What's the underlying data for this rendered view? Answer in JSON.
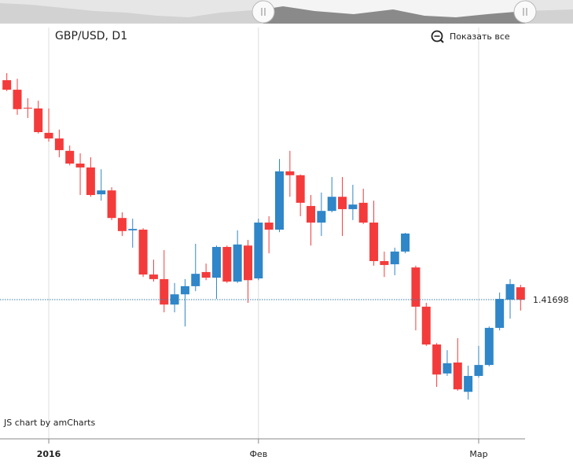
{
  "chart_data": {
    "type": "candlestick",
    "title": "GBP/USD, D1",
    "zoom_button": "Показать все",
    "credit": "JS chart by amCharts",
    "categories": [
      null,
      null,
      null,
      null,
      "2016",
      null,
      null,
      null,
      null,
      null,
      null,
      null,
      null,
      null,
      null,
      null,
      null,
      null,
      null,
      null,
      null,
      null,
      null,
      null,
      "Фев",
      null,
      null,
      null,
      null,
      null,
      null,
      null,
      null,
      null,
      null,
      null,
      null,
      null,
      null,
      null,
      null,
      null,
      null,
      null,
      null,
      "Мар",
      null,
      null,
      null,
      null
    ],
    "open": [
      1.4791,
      1.4764,
      1.4713,
      1.4711,
      1.4642,
      1.4626,
      1.4591,
      1.4555,
      1.4544,
      1.4468,
      1.4479,
      1.4401,
      1.4366,
      1.4368,
      1.4241,
      1.4228,
      1.4156,
      1.4185,
      1.4208,
      1.4248,
      1.4232,
      1.4319,
      1.4221,
      1.4323,
      1.423,
      1.4388,
      1.4368,
      1.4533,
      1.4522,
      1.4435,
      1.4388,
      1.4421,
      1.4461,
      1.4426,
      1.4444,
      1.4388,
      1.4279,
      1.427,
      1.4306,
      1.4261,
      1.415,
      1.4043,
      1.3961,
      1.3992,
      1.3909,
      1.3954,
      1.3985,
      1.409,
      1.41698,
      1.4205
    ],
    "high": [
      1.4811,
      1.4795,
      1.474,
      1.4733,
      1.4711,
      1.4651,
      1.4606,
      1.4584,
      1.4573,
      1.4539,
      1.4488,
      1.4417,
      1.4399,
      1.4372,
      1.4283,
      1.431,
      1.4217,
      1.4228,
      1.4328,
      1.4272,
      1.4323,
      1.4323,
      1.4366,
      1.4339,
      1.4399,
      1.4406,
      1.4568,
      1.4591,
      1.4524,
      1.4466,
      1.4473,
      1.4517,
      1.4517,
      1.4495,
      1.4484,
      1.445,
      1.4306,
      1.4317,
      1.4359,
      1.4266,
      1.4161,
      1.4047,
      1.4027,
      1.4061,
      1.3983,
      1.4039,
      1.4094,
      1.419,
      1.4228,
      1.4212
    ],
    "low": [
      1.476,
      1.4693,
      1.4684,
      1.464,
      1.4617,
      1.4573,
      1.455,
      1.4466,
      1.4461,
      1.445,
      1.4395,
      1.435,
      1.4317,
      1.4234,
      1.4221,
      1.4134,
      1.4134,
      1.4094,
      1.4194,
      1.4225,
      1.4172,
      1.4217,
      1.4217,
      1.4161,
      1.4225,
      1.4301,
      1.4361,
      1.4461,
      1.4406,
      1.4323,
      1.435,
      1.4417,
      1.435,
      1.4395,
      1.4384,
      1.4266,
      1.4234,
      1.4239,
      1.4301,
      1.4083,
      1.4039,
      1.3923,
      1.3954,
      1.3912,
      1.3887,
      1.3949,
      1.3981,
      1.4083,
      1.4116,
      1.4139
    ],
    "close": [
      1.4764,
      1.4709,
      1.4711,
      1.4644,
      1.4626,
      1.4593,
      1.4555,
      1.4544,
      1.4466,
      1.4479,
      1.4401,
      1.4364,
      1.437,
      1.4241,
      1.4228,
      1.4156,
      1.4185,
      1.4208,
      1.4243,
      1.4232,
      1.4319,
      1.4221,
      1.4326,
      1.4225,
      1.4388,
      1.4368,
      1.4533,
      1.4522,
      1.4444,
      1.4388,
      1.4421,
      1.4461,
      1.4426,
      1.4439,
      1.4388,
      1.4279,
      1.4268,
      1.4306,
      1.4357,
      1.415,
      1.4043,
      1.3958,
      1.399,
      1.3916,
      1.3954,
      1.3985,
      1.409,
      1.4172,
      1.4214,
      1.41698
    ],
    "up_color": "#2f86c8",
    "down_color": "#f43b3b",
    "price_line": 1.41698,
    "ylim": [
      1.3776,
      1.494
    ],
    "grid": true
  }
}
